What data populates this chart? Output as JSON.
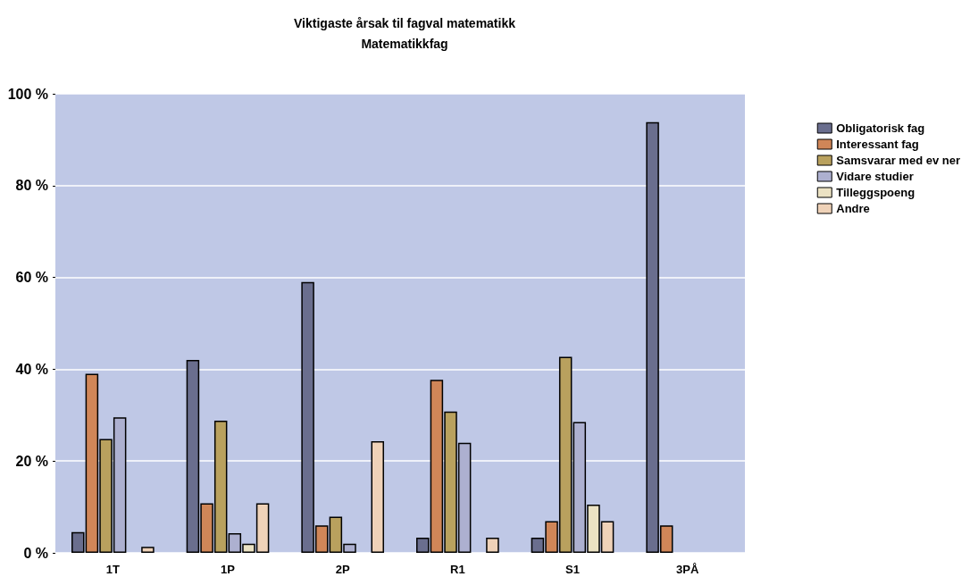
{
  "chart_data": {
    "type": "bar",
    "title": "Viktigaste årsak til fagval matematikk",
    "subtitle": "Matematikkfag",
    "categories": [
      "1T",
      "1P",
      "2P",
      "R1",
      "S1",
      "3PÅ"
    ],
    "series": [
      {
        "name": "Obligatorisk fag",
        "color": "#6a6e8e",
        "values": [
          4.5,
          42,
          59,
          3.3,
          3.3,
          93.8
        ]
      },
      {
        "name": "Interessant fag",
        "color": "#d08658",
        "values": [
          39,
          10.8,
          6,
          37.7,
          6.9,
          6
        ]
      },
      {
        "name": "Samsvarar med ev ner",
        "color": "#b9a15e",
        "values": [
          24.8,
          28.8,
          7.9,
          30.8,
          42.7,
          null
        ]
      },
      {
        "name": "Vidare studier",
        "color": "#adb0d0",
        "values": [
          29.5,
          4.3,
          2,
          24,
          28.5,
          null
        ]
      },
      {
        "name": "Tilleggspoeng",
        "color": "#ebe2c3",
        "values": [
          null,
          2,
          null,
          null,
          10.5,
          null
        ]
      },
      {
        "name": "Andre",
        "color": "#efd2b8",
        "values": [
          1.3,
          10.8,
          24.3,
          3.3,
          6.9,
          null
        ]
      }
    ],
    "ylim": [
      0,
      100
    ],
    "yticks": [
      {
        "value": 0,
        "label": "0 %"
      },
      {
        "value": 20,
        "label": "20 %"
      },
      {
        "value": 40,
        "label": "40 %"
      },
      {
        "value": 60,
        "label": "60 %"
      },
      {
        "value": 80,
        "label": "80 %"
      },
      {
        "value": 100,
        "label": "100 %"
      }
    ],
    "grid": "y",
    "legend": "right"
  }
}
